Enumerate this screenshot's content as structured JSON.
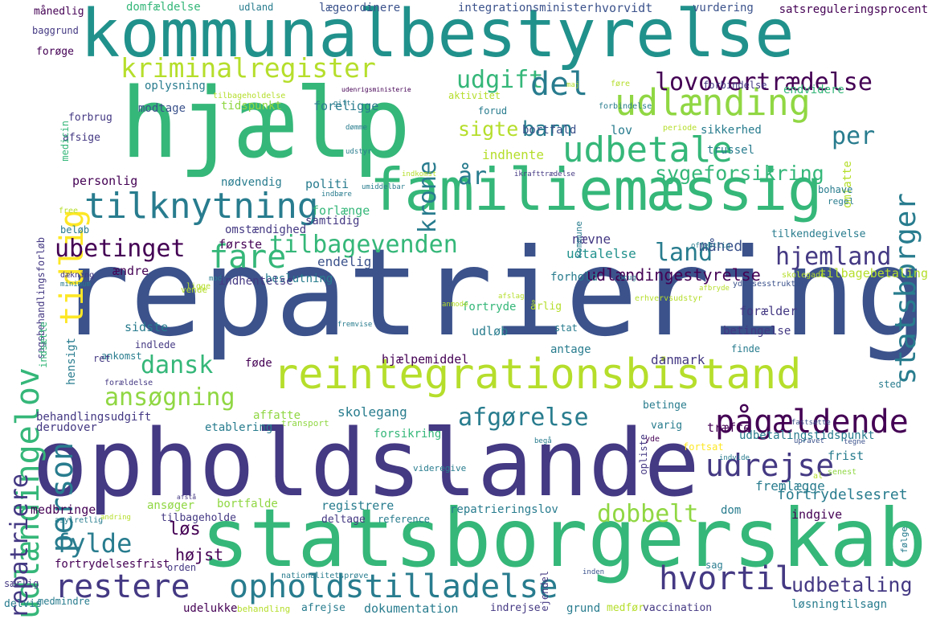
{
  "words": [
    "kommunalbestyrelse",
    "hjælp",
    "repatriering",
    "opholdslande",
    "statsborgerskab",
    "familiemæssig",
    "reintegrationsbistand",
    "udlændingelov",
    "tilknytning",
    "udlænding",
    "udbetale",
    "kriminalregister",
    "lovovertrædelse",
    "statsborger",
    "tidlig",
    "krone",
    "udgift",
    "del",
    "person",
    "restere",
    "opholdstilladelse",
    "hvortil",
    "pågældende",
    "udrejse",
    "afgørelse",
    "hjemland",
    "land",
    "fare",
    "tilbagevenden",
    "ubetinget",
    "ansøgning",
    "dansk",
    "dobbelt",
    "fylde",
    "repatriere",
    "barn",
    "sygeforsikring",
    "år",
    "sigte",
    "per",
    "udbetaling",
    "udlændingestyrelse",
    "løs",
    "højst",
    "fortrydelsesret",
    "månedlig",
    "domfældelse",
    "udland",
    "lægeordinere",
    "integrationsminister",
    "hvorvidt",
    "vurdering",
    "satsreguleringsprocent",
    "baggrund",
    "forøge",
    "oplysning",
    "modtage",
    "tidspunkt",
    "foreligge",
    "forud",
    "bortfald",
    "lov",
    "sikkerhed",
    "trussel",
    "omfatte",
    "forbindelse",
    "endvidere",
    "aktivitet",
    "indhente",
    "personlig",
    "nødvendig",
    "politi",
    "forlænge",
    "samtidig",
    "omstændighed",
    "første",
    "nævne",
    "måned",
    "tilkendegivelse",
    "udtalelse",
    "endelig",
    "ændre",
    "beslutning",
    "indhentelse",
    "forhold",
    "tilbagebetaling",
    "årlig",
    "fortryde",
    "forælder",
    "sidste",
    "hensigt",
    "udløb",
    "stat",
    "betingelse",
    "hjælpemiddel",
    "danmark",
    "antage",
    "føde",
    "finde",
    "ankomst",
    "behandlingsudgift",
    "affatte",
    "skolegang",
    "betinge",
    "etablering",
    "transport",
    "træffe",
    "varig",
    "derudover",
    "forsikring",
    "udbetalingstidspunkt",
    "fortsat",
    "frist",
    "fremlægge",
    "senest",
    "medbringe",
    "ansøger",
    "bortfalde",
    "registrere",
    "repatrieringslov",
    "dom",
    "indgive",
    "tilbageholde",
    "deltage",
    "reference",
    "følge",
    "fortrydelsesfrist",
    "orden",
    "ejendel",
    "sag",
    "særlig",
    "dokumentation",
    "udelukke",
    "afrejse",
    "indrejse",
    "grund",
    "medfør",
    "vaccination",
    "løsning",
    "tilsagn",
    "delvis",
    "medmindre",
    "behandling",
    "kommune",
    "bohave",
    "regel",
    "afsige",
    "forbrug",
    "medicin",
    "sagsbehandlingsforløb",
    "indsætte",
    "indlede",
    "ret",
    "dækning",
    "beløb",
    "free",
    "minimum",
    "vende",
    "ligge",
    "udenrigsministerie",
    "forbindelse",
    "periode",
    "tilbageholdelse",
    "skolegade",
    "ydelsesstruktur",
    "sted",
    "opliste",
    "fastsætte",
    "indbære",
    "umiddelbar",
    "indkomst",
    "afslag",
    "afbryde",
    "anmode",
    "brug",
    "gift",
    "indvide",
    "begå",
    "al",
    "yde",
    "videregive",
    "asylretlig",
    "andring",
    "upravet",
    "tegne",
    "nationalitetsprøve",
    "erhvervsudstyr",
    "inden",
    "ikrafttrædelse",
    "offentlig",
    "afstå",
    "fremvise",
    "mod",
    "udstyr",
    "dømme",
    "maj",
    "føre",
    "forældelse"
  ],
  "palette": [
    "#440154",
    "#3b528b",
    "#21918c",
    "#5ec962",
    "#fde725",
    "#31688e",
    "#35b779",
    "#90d743",
    "#443983",
    "#287c8e",
    "#1f9e89",
    "#b5de2b"
  ]
}
